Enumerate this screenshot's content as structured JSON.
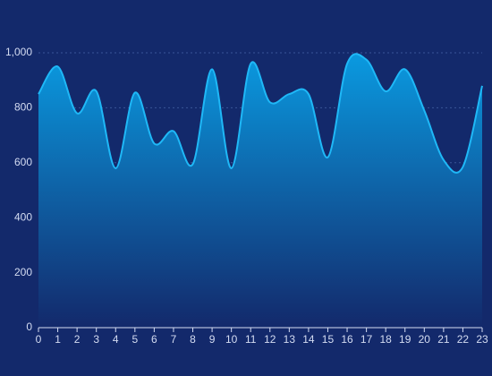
{
  "chart_data": {
    "type": "area",
    "x": [
      0,
      1,
      2,
      3,
      4,
      5,
      6,
      7,
      8,
      9,
      10,
      11,
      12,
      13,
      14,
      15,
      16,
      17,
      18,
      19,
      20,
      21,
      22,
      23
    ],
    "series": [
      {
        "color": "#1fb8f7",
        "values": [
          850,
          950,
          780,
          860,
          580,
          855,
          670,
          715,
          595,
          940,
          580,
          960,
          820,
          850,
          850,
          620,
          960,
          975,
          860,
          940,
          790,
          610,
          585,
          880
        ]
      }
    ],
    "xlim": [
      0,
      23
    ],
    "xticks": [
      0,
      1,
      2,
      3,
      4,
      5,
      6,
      7,
      8,
      9,
      10,
      11,
      12,
      13,
      14,
      15,
      16,
      17,
      18,
      19,
      20,
      21,
      22,
      23
    ],
    "ylim": [
      0,
      1000
    ],
    "yticks": [
      0,
      200,
      400,
      600,
      800,
      {
        "value": 1000,
        "label": "1,000"
      }
    ],
    "grid": true
  }
}
